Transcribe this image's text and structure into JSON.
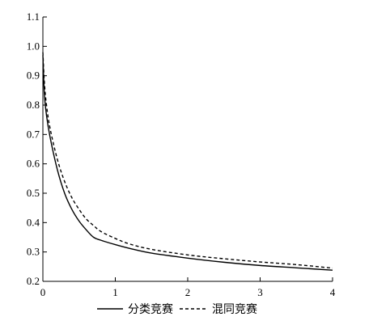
{
  "chart_data": {
    "type": "line",
    "xlim": [
      0,
      4
    ],
    "ylim": [
      0.2,
      1.1
    ],
    "x_ticks": [
      0,
      1,
      2,
      3,
      4
    ],
    "x_tick_labels": [
      "0",
      "1",
      "2",
      "3",
      "4"
    ],
    "y_ticks": [
      0.2,
      0.3,
      0.4,
      0.5,
      0.6,
      0.7,
      0.8,
      0.9,
      1.0,
      1.1
    ],
    "y_tick_labels": [
      "0.2",
      "0.3",
      "0.4",
      "0.5",
      "0.6",
      "0.7",
      "0.8",
      "0.9",
      "1.0",
      "1.1"
    ],
    "grid": false,
    "legend_position": "bottom",
    "series": [
      {
        "name": "分类竞赛",
        "style": "solid",
        "color": "#000000",
        "x": [
          0.0,
          0.02,
          0.05,
          0.1,
          0.2,
          0.3,
          0.4,
          0.5,
          0.6,
          0.7,
          0.8,
          1.0,
          1.2,
          1.5,
          2.0,
          2.5,
          3.0,
          3.5,
          4.0
        ],
        "y": [
          0.97,
          0.84,
          0.765,
          0.69,
          0.58,
          0.5,
          0.445,
          0.405,
          0.375,
          0.35,
          0.34,
          0.325,
          0.312,
          0.296,
          0.279,
          0.265,
          0.254,
          0.246,
          0.238
        ]
      },
      {
        "name": "混同竞赛",
        "style": "dashed",
        "color": "#000000",
        "x": [
          0.0,
          0.02,
          0.05,
          0.1,
          0.2,
          0.3,
          0.4,
          0.5,
          0.6,
          0.7,
          0.8,
          1.0,
          1.2,
          1.5,
          2.0,
          2.5,
          3.0,
          3.5,
          4.0
        ],
        "y": [
          0.98,
          0.88,
          0.8,
          0.72,
          0.615,
          0.54,
          0.485,
          0.445,
          0.412,
          0.39,
          0.37,
          0.346,
          0.327,
          0.309,
          0.29,
          0.277,
          0.266,
          0.257,
          0.245
        ]
      }
    ]
  }
}
